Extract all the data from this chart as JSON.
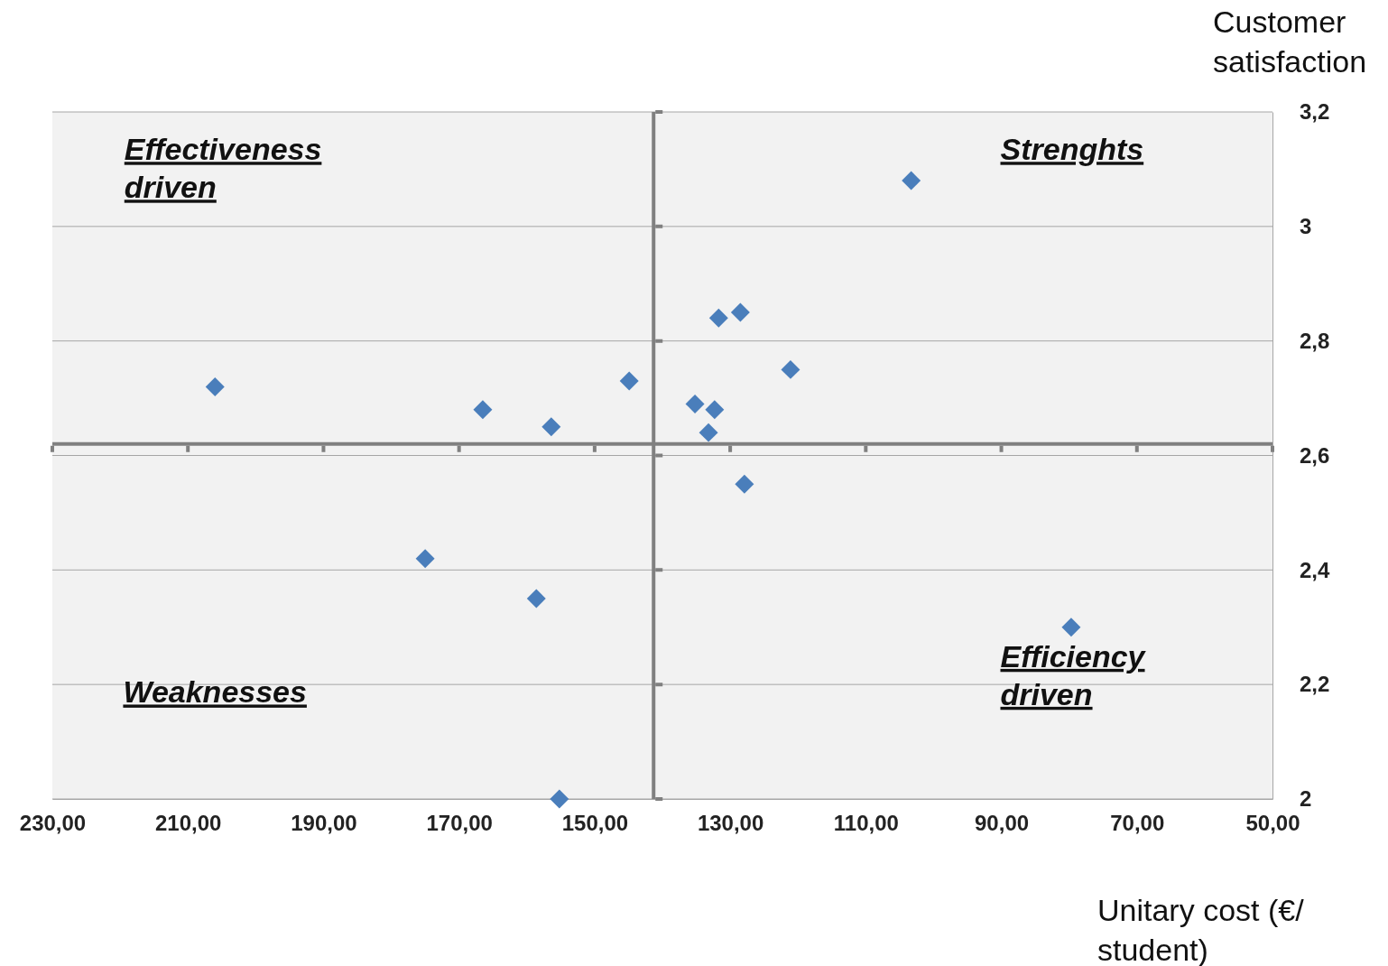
{
  "chart_data": {
    "type": "scatter",
    "xlabel": "Unitary cost (€/ student)",
    "ylabel": "Customer satisfaction",
    "annotations": [
      "Effectiveness driven",
      "Strenghts",
      "Weaknesses",
      "Efficiency driven"
    ],
    "x": [
      206.0,
      166.5,
      156.4,
      144.9,
      135.2,
      132.3,
      133.2,
      131.7,
      128.5,
      121.1,
      103.3,
      127.9,
      175.0,
      158.6,
      155.2,
      79.7
    ],
    "series": [
      {
        "color": "#4a7ebb",
        "values": [
          2.72,
          2.68,
          2.65,
          2.73,
          2.69,
          2.68,
          2.64,
          2.84,
          2.85,
          2.75,
          3.08,
          2.55,
          2.42,
          2.35,
          2.0,
          2.3
        ]
      }
    ],
    "xlim": [
      230,
      50
    ],
    "xticks": [
      {
        "value": 230,
        "label": "230,00"
      },
      {
        "value": 210,
        "label": "210,00"
      },
      {
        "value": 190,
        "label": "190,00"
      },
      {
        "value": 170,
        "label": "170,00"
      },
      {
        "value": 150,
        "label": "150,00"
      },
      {
        "value": 130,
        "label": "130,00"
      },
      {
        "value": 110,
        "label": "110,00"
      },
      {
        "value": 90,
        "label": "90,00"
      },
      {
        "value": 70,
        "label": "70,00"
      },
      {
        "value": 50,
        "label": "50,00"
      }
    ],
    "ylim": [
      2,
      3.2
    ],
    "yticks": [
      2,
      {
        "value": 2.2,
        "label": "2,2"
      },
      {
        "value": 2.4,
        "label": "2,4"
      },
      {
        "value": 2.6,
        "label": "2,6"
      },
      {
        "value": 2.8,
        "label": "2,8"
      },
      3,
      {
        "value": 3.2,
        "label": "3,2"
      }
    ],
    "ref_lines": [
      {
        "axis": "x",
        "value": 141.3,
        "color": "#808080"
      },
      {
        "axis": "y",
        "value": 2.62,
        "color": "#808080"
      }
    ],
    "grid": "y",
    "marker": "diamond"
  }
}
